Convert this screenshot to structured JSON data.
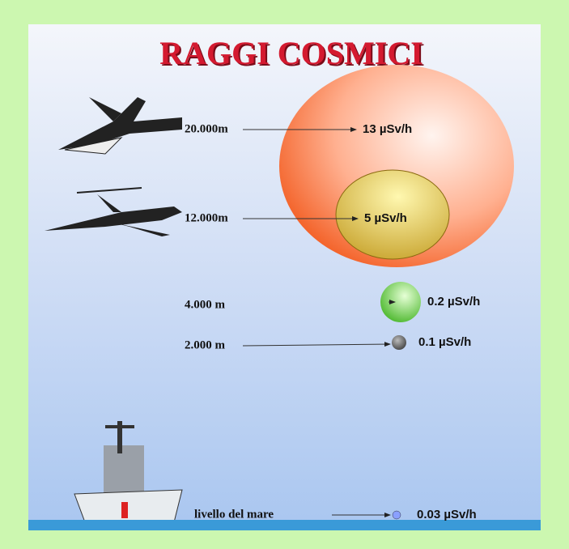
{
  "title": "RAGGI COSMICI",
  "levels": [
    {
      "altitude": "20.000m",
      "dose": "13 µSv/h"
    },
    {
      "altitude": "12.000m",
      "dose": "5 µSv/h"
    },
    {
      "altitude": "4.000 m",
      "dose": "0.2 µSv/h"
    },
    {
      "altitude": "2.000 m",
      "dose": "0.1 µSv/h"
    },
    {
      "altitude": "livello del mare",
      "dose": "0.03 µSv/h"
    }
  ]
}
